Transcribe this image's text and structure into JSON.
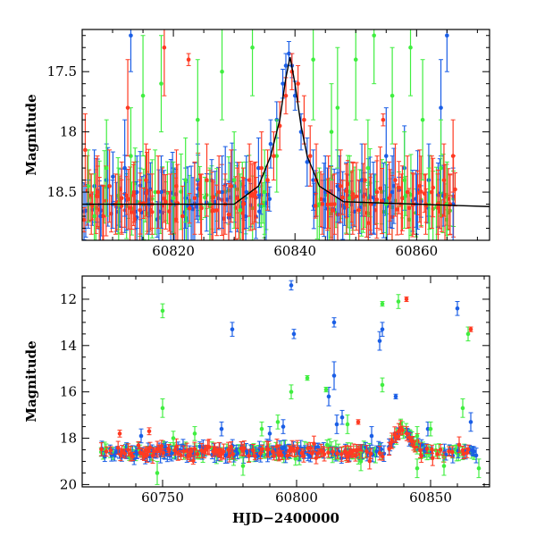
{
  "colors": {
    "blue": "#1a5ee6",
    "green": "#40ee40",
    "red": "#ff3a22",
    "model": "#000000"
  },
  "chart_data": [
    {
      "type": "scatter",
      "title": "",
      "xlabel": "",
      "ylabel": "Magnitude",
      "xlim": [
        60805,
        60872
      ],
      "ylim": [
        18.9,
        17.15
      ],
      "y_inverted": true,
      "error_bars": true,
      "grid": false,
      "xticks": [
        60820,
        60840,
        60860
      ],
      "xtick_labels": [
        "60820",
        "60840",
        "60860"
      ],
      "yticks": [
        17.5,
        18,
        18.5
      ],
      "ytick_labels": [
        "17.5",
        "18",
        "18.5"
      ],
      "series": [
        {
          "color_key": "blue",
          "points": [
            [
              60806,
              18.6,
              0.2
            ],
            [
              60807,
              18.45,
              0.3
            ],
            [
              60808,
              18.7,
              0.25
            ],
            [
              60809,
              18.4,
              0.3
            ],
            [
              60810,
              18.6,
              0.2
            ],
            [
              60812,
              18.3,
              0.4
            ],
            [
              60813,
              17.2,
              0.3
            ],
            [
              60814,
              18.5,
              0.3
            ],
            [
              60816,
              18.6,
              0.25
            ],
            [
              60818,
              18.5,
              0.3
            ],
            [
              60820,
              18.6,
              0.3
            ],
            [
              60822,
              18.55,
              0.25
            ],
            [
              60824,
              18.4,
              0.3
            ],
            [
              60826,
              18.6,
              0.25
            ],
            [
              60828,
              18.5,
              0.3
            ],
            [
              60830,
              18.45,
              0.3
            ],
            [
              60832,
              18.5,
              0.3
            ],
            [
              60834,
              18.3,
              0.25
            ],
            [
              60836,
              18.1,
              0.2
            ],
            [
              60837,
              17.9,
              0.15
            ],
            [
              60838,
              17.6,
              0.12
            ],
            [
              60838.5,
              17.45,
              0.1
            ],
            [
              60839,
              17.35,
              0.1
            ],
            [
              60839.5,
              17.45,
              0.1
            ],
            [
              60840,
              17.7,
              0.12
            ],
            [
              60841,
              18.0,
              0.15
            ],
            [
              60842,
              18.25,
              0.2
            ],
            [
              60843,
              18.4,
              0.25
            ],
            [
              60845,
              18.5,
              0.3
            ],
            [
              60847,
              18.45,
              0.3
            ],
            [
              60849,
              18.55,
              0.3
            ],
            [
              60851,
              18.4,
              0.3
            ],
            [
              60853,
              18.6,
              0.25
            ],
            [
              60855,
              18.2,
              0.4
            ],
            [
              60856,
              18.5,
              0.3
            ],
            [
              60858,
              18.3,
              0.35
            ],
            [
              60860,
              18.6,
              0.25
            ],
            [
              60862,
              18.4,
              0.3
            ],
            [
              60864,
              17.8,
              0.4
            ],
            [
              60865,
              17.2,
              0.3
            ],
            [
              60866,
              18.6,
              0.3
            ]
          ]
        },
        {
          "color_key": "green",
          "points": [
            [
              60806,
              18.45,
              0.3
            ],
            [
              60807,
              18.7,
              0.35
            ],
            [
              60809,
              18.3,
              0.4
            ],
            [
              60811,
              18.6,
              0.3
            ],
            [
              60813,
              18.2,
              0.4
            ],
            [
              60815,
              17.7,
              0.5
            ],
            [
              60817,
              18.5,
              0.35
            ],
            [
              60818,
              17.6,
              0.4
            ],
            [
              60820,
              18.55,
              0.3
            ],
            [
              60822,
              18.4,
              0.35
            ],
            [
              60824,
              17.9,
              0.5
            ],
            [
              60826,
              18.6,
              0.3
            ],
            [
              60828,
              17.5,
              0.4
            ],
            [
              60830,
              18.4,
              0.4
            ],
            [
              60831,
              18.65,
              0.3
            ],
            [
              60833,
              17.3,
              0.4
            ],
            [
              60835,
              18.5,
              0.35
            ],
            [
              60837,
              18.2,
              0.3
            ],
            [
              60843,
              17.4,
              0.5
            ],
            [
              60844,
              18.6,
              0.3
            ],
            [
              60846,
              18.0,
              0.4
            ],
            [
              60847,
              17.8,
              0.5
            ],
            [
              60849,
              18.55,
              0.35
            ],
            [
              60850,
              17.4,
              0.5
            ],
            [
              60852,
              18.3,
              0.4
            ],
            [
              60853,
              17.2,
              0.4
            ],
            [
              60855,
              18.6,
              0.35
            ],
            [
              60856,
              17.7,
              0.4
            ],
            [
              60858,
              18.4,
              0.4
            ],
            [
              60859,
              17.3,
              0.4
            ],
            [
              60861,
              17.9,
              0.5
            ],
            [
              60862,
              18.6,
              0.3
            ],
            [
              60864,
              18.3,
              0.4
            ],
            [
              60865,
              18.6,
              0.35
            ]
          ]
        },
        {
          "color_key": "red",
          "points": [
            [
              60805.5,
              18.15,
              0.3
            ],
            [
              60806.5,
              18.6,
              0.25
            ],
            [
              60807.5,
              18.5,
              0.3
            ],
            [
              60808.5,
              18.7,
              0.25
            ],
            [
              60809.5,
              18.45,
              0.3
            ],
            [
              60810.5,
              18.6,
              0.25
            ],
            [
              60811.5,
              18.55,
              0.3
            ],
            [
              60812.5,
              17.8,
              0.4
            ],
            [
              60813.5,
              18.5,
              0.25
            ],
            [
              60814.5,
              18.65,
              0.25
            ],
            [
              60815.5,
              18.4,
              0.3
            ],
            [
              60816.5,
              18.6,
              0.25
            ],
            [
              60817.5,
              18.5,
              0.3
            ],
            [
              60818.5,
              17.3,
              0.4
            ],
            [
              60819.5,
              18.6,
              0.25
            ],
            [
              60820.5,
              18.45,
              0.3
            ],
            [
              60821.5,
              18.7,
              0.25
            ],
            [
              60822.5,
              17.4,
              0.05
            ],
            [
              60823.5,
              18.55,
              0.3
            ],
            [
              60824.5,
              18.6,
              0.25
            ],
            [
              60825.5,
              18.4,
              0.3
            ],
            [
              60826.5,
              18.65,
              0.25
            ],
            [
              60827.5,
              18.5,
              0.3
            ],
            [
              60828.5,
              18.6,
              0.25
            ],
            [
              60829.5,
              18.45,
              0.3
            ],
            [
              60830.5,
              18.55,
              0.25
            ],
            [
              60831.5,
              18.6,
              0.3
            ],
            [
              60832.5,
              18.4,
              0.3
            ],
            [
              60833.5,
              18.5,
              0.25
            ],
            [
              60834.5,
              18.3,
              0.3
            ],
            [
              60835.5,
              18.4,
              0.25
            ],
            [
              60836.5,
              18.2,
              0.2
            ],
            [
              60837.5,
              17.95,
              0.2
            ],
            [
              60838.5,
              17.7,
              0.15
            ],
            [
              60839.5,
              17.5,
              0.15
            ],
            [
              60840.5,
              17.6,
              0.15
            ],
            [
              60841.5,
              17.9,
              0.2
            ],
            [
              60842.5,
              18.2,
              0.25
            ],
            [
              60843.5,
              18.4,
              0.3
            ],
            [
              60844.5,
              18.6,
              0.25
            ],
            [
              60845.5,
              18.5,
              0.3
            ],
            [
              60846.5,
              18.6,
              0.25
            ],
            [
              60847.5,
              18.45,
              0.3
            ],
            [
              60848.5,
              18.6,
              0.25
            ],
            [
              60849.5,
              18.55,
              0.3
            ],
            [
              60850.5,
              18.65,
              0.25
            ],
            [
              60851.5,
              18.4,
              0.3
            ],
            [
              60852.5,
              18.6,
              0.25
            ],
            [
              60853.5,
              18.5,
              0.3
            ],
            [
              60854.5,
              17.9,
              0.05
            ],
            [
              60855.5,
              18.55,
              0.3
            ],
            [
              60856.5,
              18.4,
              0.3
            ],
            [
              60857.5,
              18.6,
              0.25
            ],
            [
              60858.5,
              18.5,
              0.3
            ],
            [
              60859.5,
              18.6,
              0.25
            ],
            [
              60860.5,
              18.45,
              0.3
            ],
            [
              60861.5,
              18.6,
              0.25
            ],
            [
              60862.5,
              18.5,
              0.3
            ],
            [
              60863.5,
              18.6,
              0.25
            ],
            [
              60864.5,
              18.4,
              0.3
            ],
            [
              60865.5,
              18.6,
              0.25
            ],
            [
              60866,
              18.2,
              0.3
            ]
          ]
        }
      ],
      "model_curve": [
        [
          60805,
          18.6
        ],
        [
          60830,
          18.6
        ],
        [
          60834,
          18.45
        ],
        [
          60836,
          18.2
        ],
        [
          60837.5,
          17.9
        ],
        [
          60838.5,
          17.55
        ],
        [
          60839.2,
          17.38
        ],
        [
          60840,
          17.6
        ],
        [
          60841,
          17.95
        ],
        [
          60842,
          18.2
        ],
        [
          60844,
          18.45
        ],
        [
          60848,
          18.58
        ],
        [
          60872,
          18.62
        ]
      ]
    },
    {
      "type": "scatter",
      "title": "",
      "xlabel": "HJD−2400000",
      "ylabel": "Magnitude",
      "xlim": [
        60720,
        60872
      ],
      "ylim": [
        20.1,
        11
      ],
      "y_inverted": true,
      "error_bars": true,
      "grid": false,
      "xticks": [
        60750,
        60800,
        60850
      ],
      "xtick_labels": [
        "60750",
        "60800",
        "60850"
      ],
      "yticks": [
        12,
        14,
        16,
        18,
        20
      ],
      "ytick_labels": [
        "12",
        "14",
        "16",
        "18",
        "20"
      ],
      "series": [
        {
          "color_key": "blue",
          "points": [
            [
              60776,
              13.3,
              0.3
            ],
            [
              60798,
              11.4,
              0.2
            ],
            [
              60799,
              13.5,
              0.2
            ],
            [
              60814,
              13.0,
              0.2
            ],
            [
              60812,
              16.2,
              0.4
            ],
            [
              60814,
              15.3,
              0.6
            ],
            [
              60817,
              17.1,
              0.3
            ],
            [
              60831,
              13.8,
              0.4
            ],
            [
              60832,
              13.3,
              0.3
            ],
            [
              60837,
              16.2,
              0.1
            ],
            [
              60860,
              12.4,
              0.3
            ],
            [
              60772,
              17.6,
              0.3
            ],
            [
              60795,
              17.5,
              0.3
            ],
            [
              60828,
              17.9,
              0.4
            ],
            [
              60849,
              17.6,
              0.3
            ],
            [
              60865,
              17.3,
              0.4
            ],
            [
              60742,
              17.9,
              0.3
            ],
            [
              60815,
              17.4,
              0.4
            ],
            [
              60790,
              17.8,
              0.3
            ]
          ]
        },
        {
          "color_key": "green",
          "points": [
            [
              60750,
              12.5,
              0.3
            ],
            [
              60750,
              16.7,
              0.4
            ],
            [
              60754,
              18.0,
              0.3
            ],
            [
              60762,
              17.8,
              0.3
            ],
            [
              60787,
              17.6,
              0.3
            ],
            [
              60793,
              17.3,
              0.3
            ],
            [
              60798,
              16.0,
              0.3
            ],
            [
              60804,
              15.4,
              0.1
            ],
            [
              60811,
              15.9,
              0.1
            ],
            [
              60819,
              17.4,
              0.4
            ],
            [
              60832,
              15.7,
              0.3
            ],
            [
              60832,
              12.2,
              0.1
            ],
            [
              60838,
              12.1,
              0.3
            ],
            [
              60845,
              17.9,
              0.4
            ],
            [
              60850,
              17.6,
              0.3
            ],
            [
              60862,
              16.7,
              0.4
            ],
            [
              60864,
              13.5,
              0.3
            ],
            [
              60868,
              19.3,
              0.4
            ],
            [
              60748,
              19.5,
              0.5
            ],
            [
              60845,
              19.3,
              0.4
            ],
            [
              60855,
              19.2,
              0.4
            ],
            [
              60824,
              19.0,
              0.4
            ],
            [
              60780,
              19.2,
              0.4
            ]
          ]
        },
        {
          "color_key": "red",
          "points": [
            [
              60734,
              17.8,
              0.15
            ],
            [
              60745,
              17.7,
              0.15
            ],
            [
              60823,
              17.3,
              0.1
            ],
            [
              60841,
              12.0,
              0.1
            ],
            [
              60865,
              13.3,
              0.1
            ]
          ]
        }
      ],
      "dense_band": {
        "x_range": [
          60727,
          60867
        ],
        "baseline": 18.6,
        "scatter": 0.25,
        "flare_peak_x": 60839,
        "flare_peak_mag": 17.5
      }
    }
  ]
}
